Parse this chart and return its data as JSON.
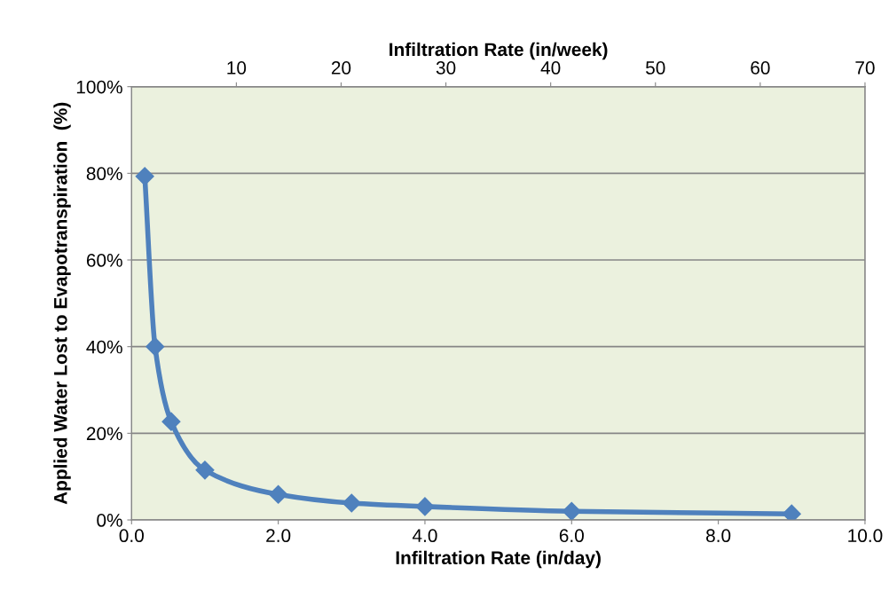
{
  "chart_data": {
    "type": "line",
    "xlabel": "Infiltration Rate (in/day)",
    "x2label": "Infiltration Rate (in/week)",
    "ylabel": "Applied Water Lost to Evapotranspiration  (%)",
    "x": [
      0.18,
      0.32,
      0.54,
      1.0,
      2.0,
      3.0,
      4.0,
      6.0,
      9.0
    ],
    "series": [
      {
        "color": "#4f81bd",
        "values": [
          79.3,
          40,
          22.7,
          11.5,
          5.9,
          3.9,
          3.1,
          2.0,
          1.4
        ]
      }
    ],
    "xlim": [
      0,
      10
    ],
    "xticks": [
      {
        "value": 0,
        "label": "0.0"
      },
      {
        "value": 2,
        "label": "2.0"
      },
      {
        "value": 4,
        "label": "4.0"
      },
      {
        "value": 6,
        "label": "6.0"
      },
      {
        "value": 8,
        "label": "8.0"
      },
      {
        "value": 10,
        "label": "10.0"
      }
    ],
    "x2lim": [
      0,
      70
    ],
    "x2ticks": [
      10,
      20,
      30,
      40,
      50,
      60,
      70
    ],
    "ylim": [
      0,
      100
    ],
    "yticks": [
      {
        "value": 0,
        "label": "0%"
      },
      {
        "value": 20,
        "label": "20%"
      },
      {
        "value": 40,
        "label": "40%"
      },
      {
        "value": 60,
        "label": "60%"
      },
      {
        "value": 80,
        "label": "80%"
      },
      {
        "value": 100,
        "label": "100%"
      }
    ],
    "grid": "y",
    "marker": "diamond",
    "line_style": "solid"
  }
}
